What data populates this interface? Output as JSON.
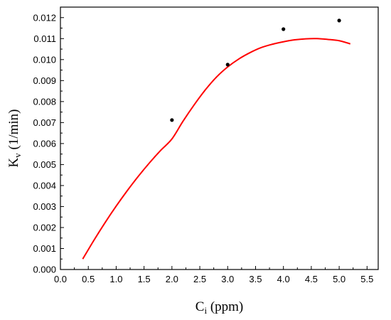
{
  "chart_data": {
    "type": "scatter",
    "title": "",
    "xlabel": {
      "main": "C",
      "sub": "i",
      "unit": " (ppm)"
    },
    "ylabel": {
      "main": "K",
      "sub": "v",
      "unit": " (1/min)"
    },
    "xlim": [
      0.0,
      5.7
    ],
    "ylim": [
      0.0,
      0.0125
    ],
    "x_ticks": [
      "0.0",
      "0.5",
      "1.0",
      "1.5",
      "2.0",
      "2.5",
      "3.0",
      "3.5",
      "4.0",
      "4.5",
      "5.0",
      "5.5"
    ],
    "y_ticks": [
      "0.000",
      "0.001",
      "0.002",
      "0.003",
      "0.004",
      "0.005",
      "0.006",
      "0.007",
      "0.008",
      "0.009",
      "0.010",
      "0.011",
      "0.012"
    ],
    "points": {
      "x": [
        2.0,
        3.0,
        4.0,
        5.0
      ],
      "y": [
        0.00712,
        0.00976,
        0.01145,
        0.01186
      ],
      "color": "#000000"
    },
    "fit_curve": {
      "x": [
        0.4,
        0.6,
        0.8,
        1.0,
        1.2,
        1.4,
        1.6,
        1.8,
        2.0,
        2.2,
        2.4,
        2.6,
        2.8,
        3.0,
        3.2,
        3.4,
        3.6,
        3.8,
        4.0,
        4.2,
        4.4,
        4.6,
        4.8,
        5.0,
        5.2
      ],
      "y": [
        0.0005,
        0.00139,
        0.00223,
        0.00302,
        0.00376,
        0.00445,
        0.00509,
        0.00568,
        0.00622,
        0.00707,
        0.00785,
        0.00856,
        0.00917,
        0.00965,
        0.01003,
        0.01033,
        0.01057,
        0.01073,
        0.01085,
        0.01094,
        0.01099,
        0.011,
        0.01096,
        0.0109,
        0.01075
      ],
      "color": "#ff0000"
    },
    "grid": false,
    "legend": "none"
  }
}
